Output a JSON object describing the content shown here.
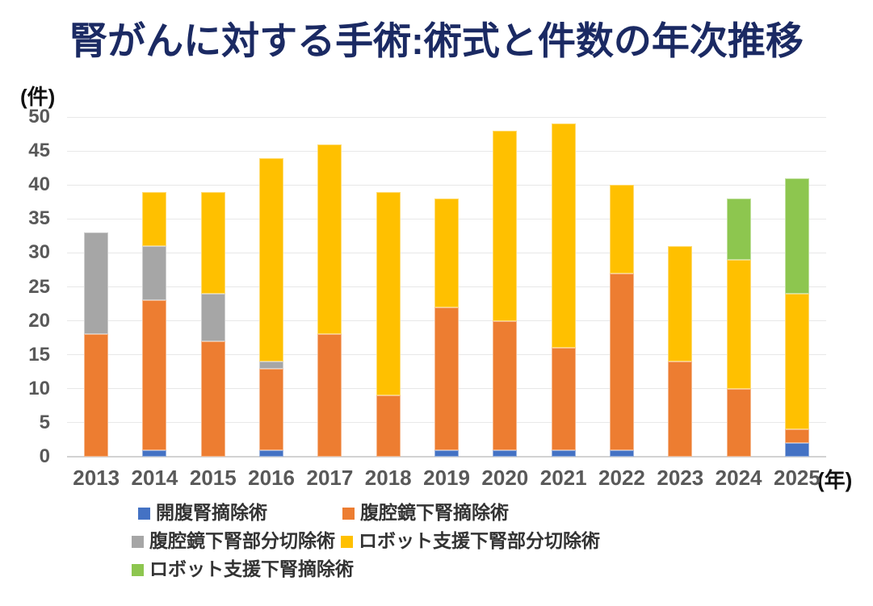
{
  "title": "腎がんに対する手術:術式と件数の年次推移",
  "y_axis_unit": "(件)",
  "x_axis_unit": "(年)",
  "colors": {
    "title": "#1B2A63",
    "axis_text": "#595959",
    "gridline": "#E8E8E8",
    "axis_line": "#D2D2D2",
    "legend_text": "#333333"
  },
  "chart_data": {
    "type": "bar",
    "stacked": true,
    "title": "腎がんに対する手術:術式と件数の年次推移",
    "xlabel": "(年)",
    "ylabel": "(件)",
    "categories": [
      "2013",
      "2014",
      "2015",
      "2016",
      "2017",
      "2018",
      "2019",
      "2020",
      "2021",
      "2022",
      "2023",
      "2024",
      "2025"
    ],
    "series": [
      {
        "name": "開腹腎摘除術",
        "color": "#4472C4",
        "values": [
          0,
          1,
          0,
          1,
          0,
          0,
          1,
          1,
          1,
          1,
          0,
          0,
          2
        ]
      },
      {
        "name": "腹腔鏡下腎摘除術",
        "color": "#ED7D31",
        "values": [
          18,
          22,
          17,
          12,
          18,
          9,
          21,
          19,
          15,
          26,
          14,
          10,
          2
        ]
      },
      {
        "name": "腹腔鏡下腎部分切除術",
        "color": "#A6A6A6",
        "values": [
          15,
          8,
          7,
          1,
          0,
          0,
          0,
          0,
          0,
          0,
          0,
          0,
          0
        ]
      },
      {
        "name": "ロボット支援下腎部分切除術",
        "color": "#FFC000",
        "values": [
          0,
          8,
          15,
          30,
          28,
          30,
          16,
          28,
          33,
          13,
          17,
          19,
          20
        ]
      },
      {
        "name": "ロボット支援下腎摘除術",
        "color": "#8DC64F",
        "values": [
          0,
          0,
          0,
          0,
          0,
          0,
          0,
          0,
          0,
          0,
          0,
          9,
          17
        ]
      }
    ],
    "totals": [
      33,
      39,
      39,
      44,
      46,
      39,
      38,
      48,
      49,
      40,
      31,
      38,
      41
    ],
    "ylim": [
      0,
      50
    ],
    "ytick_step": 5,
    "grid": true,
    "legend_position": "bottom"
  }
}
